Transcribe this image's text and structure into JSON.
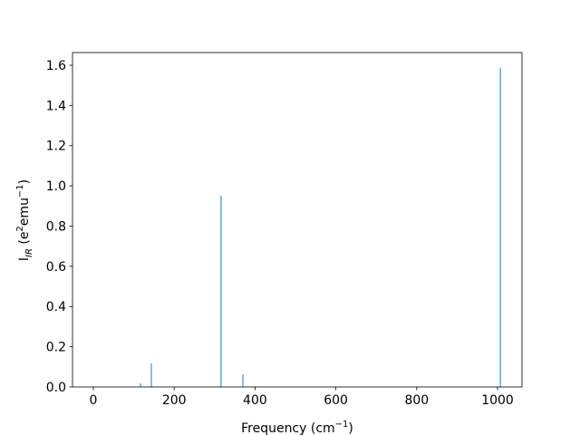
{
  "chart_data": {
    "type": "bar",
    "xlabel": {
      "text": "Frequency (cm",
      "sup": "−1",
      "end": ")"
    },
    "ylabel": {
      "main": "I",
      "sub": "IR",
      "mid": " (e",
      "sup1": "2",
      "unit": "emu",
      "sup2": "−1",
      "end": ")"
    },
    "x": [
      116.6,
      143.5,
      316,
      370,
      1007
    ],
    "values": [
      0.018,
      0.117,
      0.951,
      0.063,
      1.586
    ],
    "color": "#1f77b4",
    "xlim": [
      -51.6,
      1060.5
    ],
    "xticks": [
      0,
      200,
      400,
      600,
      800,
      1000
    ],
    "ylim": [
      0,
      1.663
    ],
    "yticks": [
      {
        "value": 0,
        "label": "0.0"
      },
      0.2,
      0.4,
      0.6,
      0.8,
      {
        "value": 1,
        "label": "1.0"
      },
      1.2,
      1.4,
      1.6
    ]
  }
}
